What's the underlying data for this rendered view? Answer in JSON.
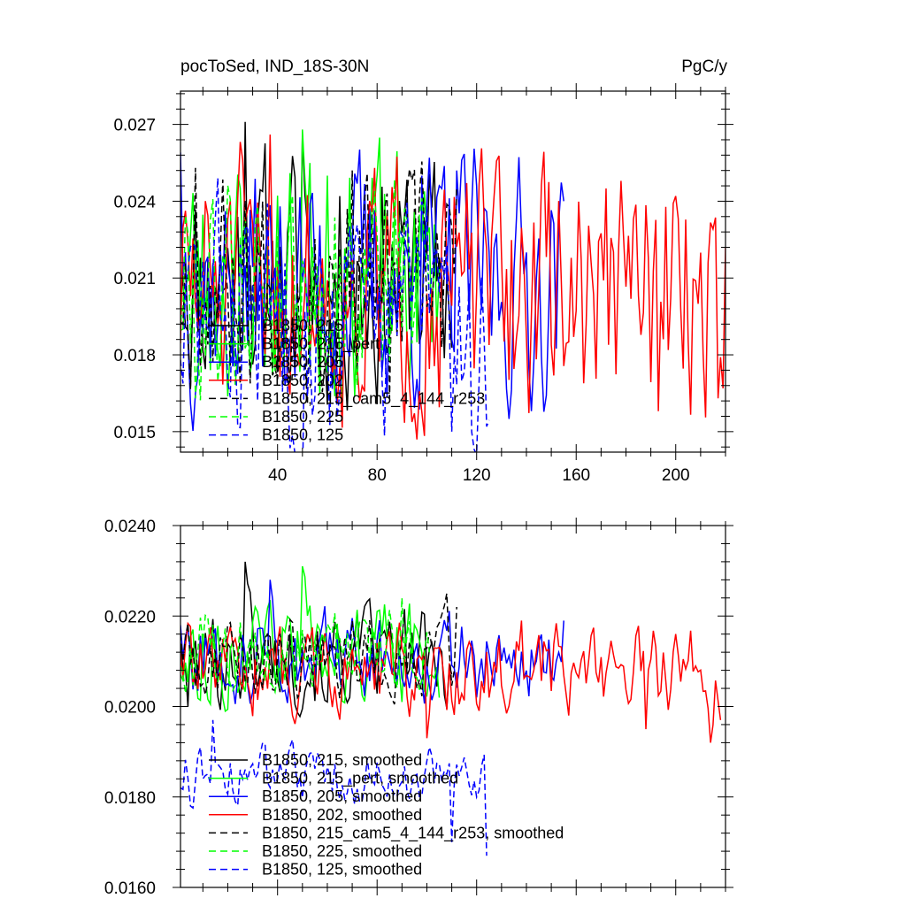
{
  "figure": {
    "top_title_left": "pocToSed, IND_18S-30N",
    "top_title_right": "PgC/y"
  },
  "chart_data": [
    {
      "type": "line",
      "title": "pocToSed, IND_18S-30N",
      "units": "PgC/y",
      "xlim": [
        1,
        220
      ],
      "ylim": [
        0.0142,
        0.0283
      ],
      "x_ticks": [
        40,
        80,
        120,
        160,
        200
      ],
      "x_tick_labels": [
        "40",
        "80",
        "120",
        "160",
        "200"
      ],
      "y_ticks": [
        0.015,
        0.018,
        0.021,
        0.024,
        0.027
      ],
      "y_tick_labels": [
        "0.015",
        "0.018",
        "0.021",
        "0.024",
        "0.027"
      ],
      "grid": false,
      "legend_position": "lower-left",
      "series": [
        {
          "name": "B1850, 215",
          "color": "#000000",
          "dash": "solid",
          "x_start": 1,
          "x_end": 110,
          "center": 0.021,
          "amp": 0.004,
          "seed": 11,
          "points": [
            [
              1,
              0.025
            ],
            [
              27,
              0.0271
            ],
            [
              50,
              0.0266
            ],
            [
              95,
              0.0237
            ]
          ]
        },
        {
          "name": "B1850, 215_pert",
          "color": "#00ff00",
          "dash": "solid",
          "x_start": 1,
          "x_end": 105,
          "center": 0.021,
          "amp": 0.004,
          "seed": 23,
          "points": [
            [
              50,
              0.0268
            ],
            [
              60,
              0.025
            ],
            [
              80,
              0.025
            ]
          ]
        },
        {
          "name": "B1850, 205",
          "color": "#0000ff",
          "dash": "solid",
          "x_start": 1,
          "x_end": 155,
          "center": 0.0208,
          "amp": 0.004,
          "seed": 37,
          "points": [
            [
              1,
              0.0259
            ],
            [
              98,
              0.025
            ],
            [
              112,
              0.0252
            ],
            [
              155,
              0.024
            ]
          ]
        },
        {
          "name": "B1850, 202",
          "color": "#ff0000",
          "dash": "solid",
          "x_start": 1,
          "x_end": 220,
          "center": 0.0205,
          "amp": 0.0042,
          "seed": 51,
          "points": [
            [
              37,
              0.0266
            ],
            [
              193,
              0.0158
            ],
            [
              200,
              0.0242
            ],
            [
              217,
              0.0163
            ],
            [
              220,
              0.0222
            ]
          ]
        },
        {
          "name": "B1850, 215_cam5_4_144_r253",
          "color": "#000000",
          "dash": "dashed",
          "x_start": 1,
          "x_end": 112,
          "center": 0.021,
          "amp": 0.0036,
          "seed": 67,
          "points": [
            [
              7,
              0.0253
            ],
            [
              70,
              0.0252
            ],
            [
              85,
              0.0163
            ]
          ]
        },
        {
          "name": "B1850, 225",
          "color": "#00ff00",
          "dash": "dashed",
          "x_start": 1,
          "x_end": 101,
          "center": 0.021,
          "amp": 0.0036,
          "seed": 79,
          "points": [
            [
              7,
              0.0163
            ]
          ]
        },
        {
          "name": "B1850, 125",
          "color": "#0000ff",
          "dash": "dashed",
          "x_start": 1,
          "x_end": 125,
          "center": 0.0195,
          "amp": 0.004,
          "seed": 83,
          "points": [
            [
              1,
              0.0178
            ],
            [
              110,
              0.015
            ],
            [
              118,
              0.015
            ],
            [
              124,
              0.0152
            ]
          ]
        }
      ]
    },
    {
      "type": "line",
      "xlim": [
        1,
        220
      ],
      "ylim": [
        0.016,
        0.024
      ],
      "x_ticks": [
        40,
        80,
        120,
        160,
        200
      ],
      "x_tick_labels": [],
      "y_ticks": [
        0.016,
        0.018,
        0.02,
        0.022,
        0.024
      ],
      "y_tick_labels": [
        "0.0160",
        "0.0180",
        "0.0200",
        "0.0220",
        "0.0240"
      ],
      "grid": false,
      "legend_position": "lower-left",
      "series": [
        {
          "name": "B1850, 215, smoothed",
          "color": "#000000",
          "dash": "solid",
          "x_start": 1,
          "x_end": 110,
          "center": 0.0211,
          "amp": 0.0009,
          "seed": 101,
          "points": [
            [
              1,
              0.0214
            ],
            [
              4,
              0.02
            ],
            [
              27,
              0.0232
            ],
            [
              60,
              0.0201
            ],
            [
              100,
              0.0208
            ]
          ]
        },
        {
          "name": "B1850, 215_pert, smoothed",
          "color": "#00ff00",
          "dash": "solid",
          "x_start": 1,
          "x_end": 105,
          "center": 0.0212,
          "amp": 0.0009,
          "seed": 113,
          "points": [
            [
              1,
              0.0207
            ],
            [
              50,
              0.0231
            ],
            [
              90,
              0.0201
            ],
            [
              102,
              0.0207
            ]
          ]
        },
        {
          "name": "B1850, 205, smoothed",
          "color": "#0000ff",
          "dash": "solid",
          "x_start": 1,
          "x_end": 155,
          "center": 0.0211,
          "amp": 0.0008,
          "seed": 127,
          "points": [
            [
              1,
              0.0218
            ],
            [
              37,
              0.0228
            ],
            [
              120,
              0.0202
            ],
            [
              155,
              0.0219
            ]
          ]
        },
        {
          "name": "B1850, 202, smoothed",
          "color": "#ff0000",
          "dash": "solid",
          "x_start": 1,
          "x_end": 218,
          "center": 0.0208,
          "amp": 0.0008,
          "seed": 139,
          "points": [
            [
              1,
              0.0212
            ],
            [
              100,
              0.0193
            ],
            [
              138,
              0.0219
            ],
            [
              188,
              0.0195
            ],
            [
              214,
              0.0192
            ],
            [
              218,
              0.0197
            ]
          ]
        },
        {
          "name": "B1850, 215_cam5_4_144_r253, smoothed",
          "color": "#000000",
          "dash": "dashed",
          "x_start": 1,
          "x_end": 112,
          "center": 0.0211,
          "amp": 0.0008,
          "seed": 149,
          "points": [
            [
              1,
              0.0216
            ],
            [
              34,
              0.0204
            ],
            [
              108,
              0.0225
            ],
            [
              112,
              0.0222
            ]
          ]
        },
        {
          "name": "B1850, 225, smoothed",
          "color": "#00ff00",
          "dash": "dashed",
          "x_start": 1,
          "x_end": 101,
          "center": 0.0212,
          "amp": 0.0008,
          "seed": 163,
          "points": [
            [
              1,
              0.0209
            ],
            [
              90,
              0.0224
            ],
            [
              101,
              0.0212
            ]
          ]
        },
        {
          "name": "B1850, 125, smoothed",
          "color": "#0000ff",
          "dash": "dashed",
          "x_start": 1,
          "x_end": 124,
          "center": 0.0185,
          "amp": 0.0005,
          "seed": 173,
          "points": [
            [
              1,
              0.0182
            ],
            [
              5,
              0.0178
            ],
            [
              14,
              0.0197
            ],
            [
              40,
              0.0184
            ],
            [
              110,
              0.017
            ],
            [
              120,
              0.018
            ],
            [
              124,
              0.0167
            ]
          ]
        }
      ]
    }
  ]
}
